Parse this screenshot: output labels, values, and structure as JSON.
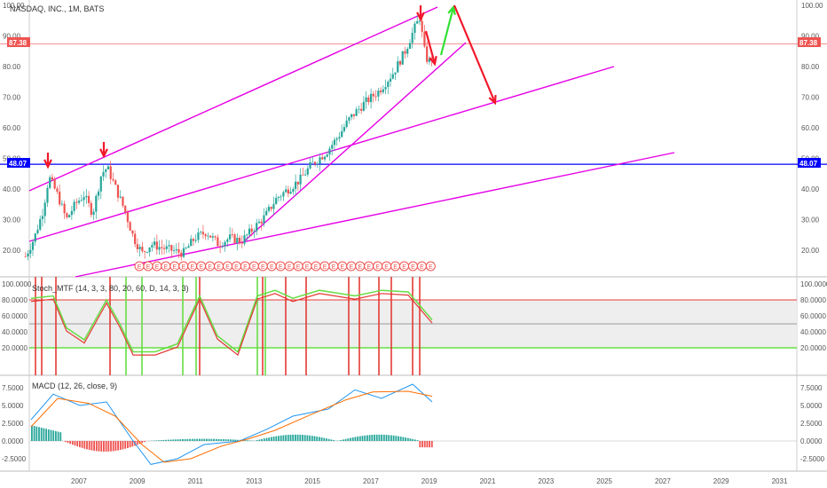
{
  "main": {
    "title": "NASDAQ, INC., 1M, BATS",
    "price_ticks": [
      "100.00",
      "90.00",
      "80.00",
      "70.00",
      "60.00",
      "50.00",
      "40.00",
      "30.00",
      "20.00"
    ],
    "price_values": [
      100,
      90,
      80,
      70,
      60,
      50,
      40,
      30,
      20
    ],
    "current_price": "87.38",
    "hline_price": "48.07",
    "colors": {
      "up": "#26a69a",
      "down": "#ef5350",
      "channel": "#e600e6",
      "hline": "#0000ff",
      "current": "#ef5350",
      "arrow_down": "#f2182a",
      "arrow_up": "#33e033"
    }
  },
  "earnings_marker": "E",
  "stoch": {
    "title": "Stoch_MTF (14, 3, 3, 80, 20, 60, D, 14, 3, 3)",
    "ticks": [
      "100.0000",
      "80.0000",
      "60.0000",
      "40.0000",
      "20.0000"
    ],
    "tick_values": [
      100,
      80,
      60,
      40,
      20
    ],
    "upper": 80,
    "lower": 20,
    "mid": 50
  },
  "macd": {
    "title": "MACD (12, 26, close, 9)",
    "ticks": [
      "7.5000",
      "5.0000",
      "2.5000",
      "0.0000",
      "-2.5000"
    ],
    "tick_values": [
      7.5,
      5,
      2.5,
      0,
      -2.5
    ]
  },
  "x_axis": {
    "labels": [
      "2007",
      "2009",
      "2011",
      "2013",
      "2015",
      "2017",
      "2019",
      "2021",
      "2023",
      "2025",
      "2027",
      "2029",
      "2031"
    ],
    "years": [
      2007,
      2009,
      2011,
      2013,
      2015,
      2017,
      2019,
      2021,
      2023,
      2025,
      2027,
      2029,
      2031
    ]
  },
  "chart_data": {
    "type": "candlestick",
    "title": "NASDAQ, INC., 1M, BATS",
    "ylim": [
      15,
      100
    ],
    "series": [
      {
        "name": "price (approx. close)",
        "points": [
          [
            2005.2,
            18
          ],
          [
            2005.5,
            24
          ],
          [
            2005.8,
            33
          ],
          [
            2006.0,
            44
          ],
          [
            2006.3,
            38
          ],
          [
            2006.6,
            30
          ],
          [
            2006.9,
            35
          ],
          [
            2007.2,
            38
          ],
          [
            2007.5,
            32
          ],
          [
            2007.8,
            45
          ],
          [
            2008.0,
            47
          ],
          [
            2008.3,
            40
          ],
          [
            2008.6,
            33
          ],
          [
            2008.9,
            24
          ],
          [
            2009.2,
            19
          ],
          [
            2009.5,
            22
          ],
          [
            2009.8,
            21
          ],
          [
            2010.2,
            20
          ],
          [
            2010.6,
            19
          ],
          [
            2011.0,
            24
          ],
          [
            2011.4,
            26
          ],
          [
            2011.8,
            22
          ],
          [
            2012.2,
            24
          ],
          [
            2012.6,
            23
          ],
          [
            2013.0,
            27
          ],
          [
            2013.4,
            31
          ],
          [
            2013.8,
            37
          ],
          [
            2014.2,
            40
          ],
          [
            2014.6,
            43
          ],
          [
            2015.0,
            48
          ],
          [
            2015.5,
            52
          ],
          [
            2015.9,
            57
          ],
          [
            2016.3,
            63
          ],
          [
            2016.8,
            68
          ],
          [
            2017.3,
            72
          ],
          [
            2017.8,
            78
          ],
          [
            2018.2,
            85
          ],
          [
            2018.5,
            92
          ],
          [
            2018.7,
            96
          ],
          [
            2018.9,
            83
          ],
          [
            2019.1,
            81
          ],
          [
            2019.15,
            87.38
          ]
        ]
      }
    ],
    "horizontal_lines": [
      48.07
    ],
    "current_price": 87.38
  }
}
